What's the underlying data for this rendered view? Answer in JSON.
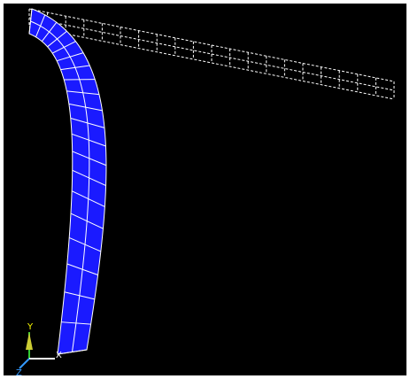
{
  "triad": {
    "y_label": "Y",
    "x_label": "X",
    "z_label": "Z"
  }
}
